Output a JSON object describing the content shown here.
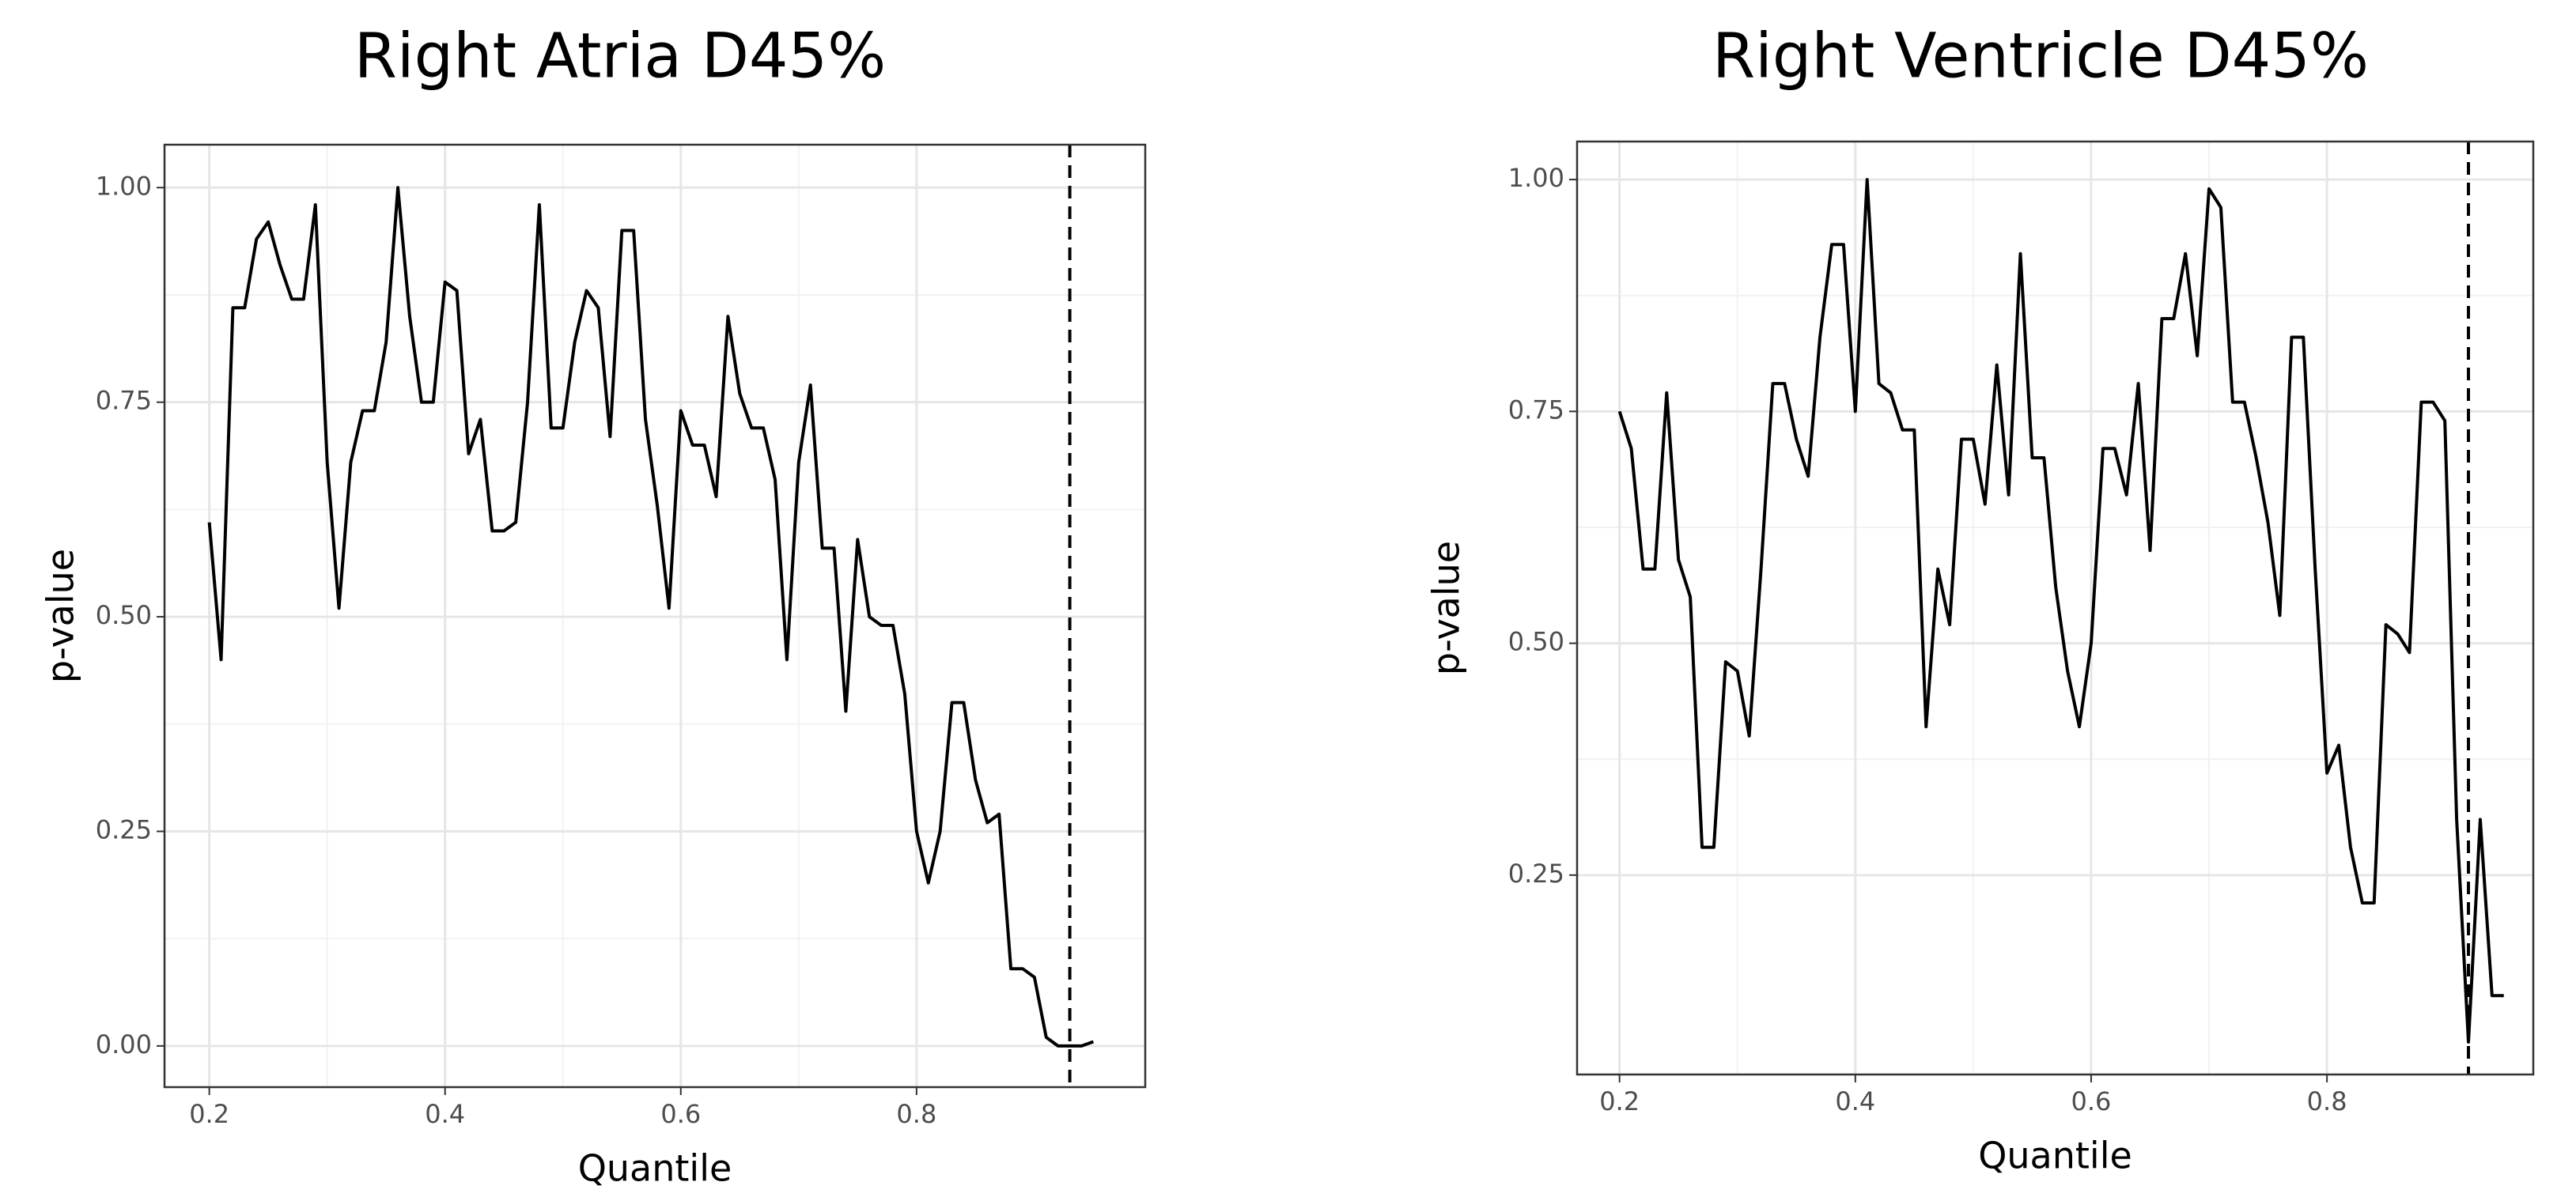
{
  "chart_data": [
    {
      "type": "line",
      "title": "Right Atria D45%",
      "x_label": "Quantile",
      "y_label": "p-value",
      "x": [
        0.2,
        0.21,
        0.22,
        0.23,
        0.24,
        0.25,
        0.26,
        0.27,
        0.28,
        0.29,
        0.3,
        0.31,
        0.32,
        0.33,
        0.34,
        0.35,
        0.36,
        0.37,
        0.38,
        0.39,
        0.4,
        0.41,
        0.42,
        0.43,
        0.44,
        0.45,
        0.46,
        0.47,
        0.48,
        0.49,
        0.5,
        0.51,
        0.52,
        0.53,
        0.54,
        0.55,
        0.56,
        0.57,
        0.58,
        0.59,
        0.6,
        0.61,
        0.62,
        0.63,
        0.64,
        0.65,
        0.66,
        0.67,
        0.68,
        0.69,
        0.7,
        0.71,
        0.72,
        0.73,
        0.74,
        0.75,
        0.76,
        0.77,
        0.78,
        0.79,
        0.8,
        0.81,
        0.82,
        0.83,
        0.84,
        0.85,
        0.86,
        0.87,
        0.88,
        0.89,
        0.9,
        0.91,
        0.92,
        0.93,
        0.94,
        0.95
      ],
      "values": [
        0.61,
        0.45,
        0.86,
        0.86,
        0.94,
        0.96,
        0.91,
        0.87,
        0.87,
        0.98,
        0.68,
        0.51,
        0.68,
        0.74,
        0.74,
        0.82,
        1.0,
        0.85,
        0.75,
        0.75,
        0.89,
        0.88,
        0.69,
        0.73,
        0.6,
        0.6,
        0.61,
        0.75,
        0.98,
        0.72,
        0.72,
        0.82,
        0.88,
        0.86,
        0.71,
        0.95,
        0.95,
        0.73,
        0.63,
        0.51,
        0.74,
        0.7,
        0.7,
        0.64,
        0.85,
        0.76,
        0.72,
        0.72,
        0.66,
        0.45,
        0.68,
        0.77,
        0.58,
        0.58,
        0.39,
        0.59,
        0.5,
        0.49,
        0.49,
        0.41,
        0.25,
        0.19,
        0.25,
        0.4,
        0.4,
        0.31,
        0.26,
        0.27,
        0.09,
        0.09,
        0.08,
        0.01,
        0.0,
        0.0,
        0.0,
        0.005
      ],
      "color": "#000000",
      "reference_x": 0.93,
      "xlim": [
        0.162,
        0.994
      ],
      "ylim": [
        -0.048,
        1.05
      ],
      "xticks": [
        0.2,
        0.4,
        0.6,
        0.8
      ],
      "yticks": [
        {
          "value": 0,
          "label": "0.00"
        },
        {
          "value": 0.25,
          "label": "0.25"
        },
        {
          "value": 0.5,
          "label": "0.50"
        },
        {
          "value": 0.75,
          "label": "0.75"
        },
        {
          "value": 1,
          "label": "1.00"
        }
      ],
      "grid": true
    },
    {
      "type": "line",
      "title": "Right Ventricle D45%",
      "x_label": "Quantile",
      "y_label": "p-value",
      "x": [
        0.2,
        0.21,
        0.22,
        0.23,
        0.24,
        0.25,
        0.26,
        0.27,
        0.28,
        0.29,
        0.3,
        0.31,
        0.32,
        0.33,
        0.34,
        0.35,
        0.36,
        0.37,
        0.38,
        0.39,
        0.4,
        0.41,
        0.42,
        0.43,
        0.44,
        0.45,
        0.46,
        0.47,
        0.48,
        0.49,
        0.5,
        0.51,
        0.52,
        0.53,
        0.54,
        0.55,
        0.56,
        0.57,
        0.58,
        0.59,
        0.6,
        0.61,
        0.62,
        0.63,
        0.64,
        0.65,
        0.66,
        0.67,
        0.68,
        0.69,
        0.7,
        0.71,
        0.72,
        0.73,
        0.74,
        0.75,
        0.76,
        0.77,
        0.78,
        0.79,
        0.8,
        0.81,
        0.82,
        0.83,
        0.84,
        0.85,
        0.86,
        0.87,
        0.88,
        0.89,
        0.9,
        0.91,
        0.92,
        0.93,
        0.94,
        0.95
      ],
      "values": [
        0.75,
        0.71,
        0.58,
        0.58,
        0.77,
        0.59,
        0.55,
        0.28,
        0.28,
        0.48,
        0.47,
        0.4,
        0.58,
        0.78,
        0.78,
        0.72,
        0.68,
        0.83,
        0.93,
        0.93,
        0.75,
        1.0,
        0.78,
        0.77,
        0.73,
        0.73,
        0.41,
        0.58,
        0.52,
        0.72,
        0.72,
        0.65,
        0.8,
        0.66,
        0.92,
        0.7,
        0.7,
        0.56,
        0.47,
        0.41,
        0.5,
        0.71,
        0.71,
        0.66,
        0.78,
        0.6,
        0.85,
        0.85,
        0.92,
        0.81,
        0.99,
        0.97,
        0.76,
        0.76,
        0.7,
        0.63,
        0.53,
        0.83,
        0.83,
        0.58,
        0.36,
        0.39,
        0.28,
        0.22,
        0.22,
        0.52,
        0.51,
        0.49,
        0.76,
        0.76,
        0.74,
        0.31,
        0.07,
        0.31,
        0.12,
        0.12
      ],
      "color": "#000000",
      "reference_x": 0.92,
      "xlim": [
        0.164,
        0.975
      ],
      "ylim": [
        0.035,
        1.041
      ],
      "xticks": [
        0.2,
        0.4,
        0.6,
        0.8
      ],
      "yticks": [
        {
          "value": 0.25,
          "label": "0.25"
        },
        {
          "value": 0.5,
          "label": "0.50"
        },
        {
          "value": 0.75,
          "label": "0.75"
        },
        {
          "value": 1,
          "label": "1.00"
        }
      ],
      "grid": true
    }
  ]
}
